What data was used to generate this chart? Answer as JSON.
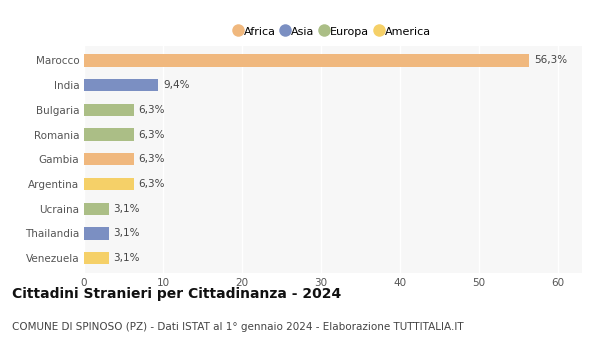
{
  "categories": [
    "Marocco",
    "India",
    "Bulgaria",
    "Romania",
    "Gambia",
    "Argentina",
    "Ucraina",
    "Thailandia",
    "Venezuela"
  ],
  "values": [
    56.3,
    9.4,
    6.3,
    6.3,
    6.3,
    6.3,
    3.1,
    3.1,
    3.1
  ],
  "labels": [
    "56,3%",
    "9,4%",
    "6,3%",
    "6,3%",
    "6,3%",
    "6,3%",
    "3,1%",
    "3,1%",
    "3,1%"
  ],
  "colors": [
    "#F0B87E",
    "#7B8FC2",
    "#ABBE86",
    "#ABBE86",
    "#F0B87E",
    "#F5D068",
    "#ABBE86",
    "#7B8FC2",
    "#F5D068"
  ],
  "legend_items": [
    {
      "label": "Africa",
      "color": "#F0B87E"
    },
    {
      "label": "Asia",
      "color": "#7B8FC2"
    },
    {
      "label": "Europa",
      "color": "#ABBE86"
    },
    {
      "label": "America",
      "color": "#F5D068"
    }
  ],
  "xlim": [
    0,
    63
  ],
  "xticks": [
    0,
    10,
    20,
    30,
    40,
    50,
    60
  ],
  "title": "Cittadini Stranieri per Cittadinanza - 2024",
  "subtitle": "COMUNE DI SPINOSO (PZ) - Dati ISTAT al 1° gennaio 2024 - Elaborazione TUTTITALIA.IT",
  "bg_color": "#ffffff",
  "plot_bg_color": "#f7f7f7",
  "grid_color": "#ffffff",
  "bar_height": 0.5,
  "label_fontsize": 7.5,
  "tick_fontsize": 7.5,
  "title_fontsize": 10,
  "subtitle_fontsize": 7.5
}
